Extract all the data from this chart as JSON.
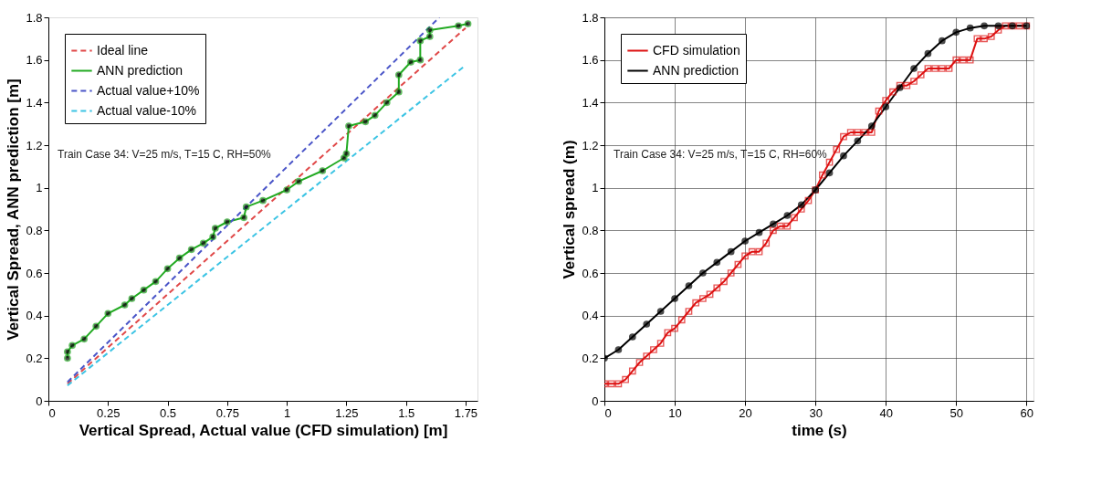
{
  "chart_data": [
    {
      "type": "line",
      "xlabel": "Vertical Spread, Actual value (CFD simulation) [m]",
      "ylabel": "Vertical Spread, ANN prediction [m]",
      "xlim": [
        0,
        1.8
      ],
      "xticks": [
        0,
        0.25,
        0.5,
        0.75,
        1,
        1.25,
        1.5,
        1.75
      ],
      "ylim": [
        0,
        1.8
      ],
      "yticks": [
        0,
        0.2,
        0.4,
        0.6,
        0.8,
        1,
        1.2,
        1.4,
        1.6,
        1.8
      ],
      "grid": false,
      "legend": "top left",
      "annotations": [
        "Train Case 34: V=25 m/s, T=15 C, RH=50%"
      ],
      "series": [
        {
          "name": "Ideal line",
          "color": "#e04848",
          "line_style": "dashed",
          "marker": "none",
          "x": [
            0.08,
            1.75
          ],
          "values": [
            0.08,
            1.75
          ]
        },
        {
          "name": "ANN prediction",
          "color": "#22aa22",
          "line_style": "solid",
          "marker": "circle",
          "x": [
            0.08,
            0.08,
            0.1,
            0.15,
            0.2,
            0.25,
            0.32,
            0.35,
            0.4,
            0.45,
            0.5,
            0.55,
            0.6,
            0.65,
            0.69,
            0.7,
            0.75,
            0.82,
            0.83,
            0.9,
            1.0,
            1.05,
            1.15,
            1.24,
            1.25,
            1.26,
            1.33,
            1.37,
            1.42,
            1.47,
            1.47,
            1.52,
            1.56,
            1.56,
            1.6,
            1.6,
            1.72,
            1.76
          ],
          "values": [
            0.2,
            0.23,
            0.26,
            0.29,
            0.35,
            0.41,
            0.45,
            0.48,
            0.52,
            0.56,
            0.62,
            0.67,
            0.71,
            0.74,
            0.77,
            0.81,
            0.84,
            0.86,
            0.91,
            0.94,
            0.99,
            1.03,
            1.08,
            1.14,
            1.16,
            1.29,
            1.31,
            1.34,
            1.4,
            1.45,
            1.53,
            1.59,
            1.6,
            1.69,
            1.71,
            1.74,
            1.76,
            1.77
          ]
        },
        {
          "name": "Actual value+10%",
          "color": "#4a55c8",
          "line_style": "dashed",
          "marker": "none",
          "x": [
            0.08,
            1.64
          ],
          "values": [
            0.088,
            1.8
          ]
        },
        {
          "name": "Actual value-10%",
          "color": "#3cc4e4",
          "line_style": "dashed",
          "marker": "none",
          "x": [
            0.08,
            1.75
          ],
          "values": [
            0.072,
            1.575
          ]
        }
      ]
    },
    {
      "type": "line",
      "xlabel": "time (s)",
      "ylabel": "Vertical spread (m)",
      "xlim": [
        0,
        61
      ],
      "xticks": [
        0,
        10,
        20,
        30,
        40,
        50,
        60
      ],
      "ylim": [
        0,
        1.8
      ],
      "yticks": [
        0,
        0.2,
        0.4,
        0.6,
        0.8,
        1,
        1.2,
        1.4,
        1.6,
        1.8
      ],
      "grid": true,
      "legend": "top left",
      "annotations": [
        "Train Case 34: V=25 m/s, T=15 C, RH=60%"
      ],
      "series": [
        {
          "name": "CFD simulation",
          "color": "#dd1111",
          "line_style": "solid",
          "marker": "square",
          "x": [
            0,
            1,
            2,
            3,
            4,
            5,
            6,
            7,
            8,
            9,
            10,
            11,
            12,
            13,
            14,
            15,
            16,
            17,
            18,
            19,
            20,
            21,
            22,
            23,
            24,
            25,
            26,
            27,
            28,
            29,
            30,
            31,
            32,
            33,
            34,
            35,
            36,
            37,
            38,
            39,
            40,
            41,
            42,
            43,
            44,
            45,
            46,
            47,
            48,
            49,
            50,
            51,
            52,
            53,
            54,
            55,
            56,
            57,
            58,
            59,
            60
          ],
          "values": [
            0.08,
            0.08,
            0.08,
            0.1,
            0.14,
            0.18,
            0.21,
            0.24,
            0.27,
            0.32,
            0.34,
            0.38,
            0.42,
            0.46,
            0.48,
            0.5,
            0.53,
            0.56,
            0.6,
            0.64,
            0.68,
            0.7,
            0.7,
            0.74,
            0.8,
            0.82,
            0.82,
            0.86,
            0.9,
            0.94,
            0.99,
            1.06,
            1.12,
            1.18,
            1.24,
            1.26,
            1.26,
            1.26,
            1.26,
            1.36,
            1.41,
            1.45,
            1.48,
            1.48,
            1.5,
            1.53,
            1.56,
            1.56,
            1.56,
            1.56,
            1.6,
            1.6,
            1.6,
            1.7,
            1.7,
            1.71,
            1.74,
            1.76,
            1.76,
            1.76,
            1.76
          ]
        },
        {
          "name": "ANN prediction",
          "color": "#000000",
          "line_style": "solid",
          "marker": "circle",
          "x": [
            0,
            2,
            4,
            6,
            8,
            10,
            12,
            14,
            16,
            18,
            20,
            22,
            24,
            26,
            28,
            30,
            32,
            34,
            36,
            38,
            40,
            42,
            44,
            46,
            48,
            50,
            52,
            54,
            56,
            58,
            60
          ],
          "values": [
            0.2,
            0.24,
            0.3,
            0.36,
            0.42,
            0.48,
            0.54,
            0.6,
            0.65,
            0.7,
            0.75,
            0.79,
            0.83,
            0.87,
            0.92,
            0.99,
            1.07,
            1.15,
            1.22,
            1.29,
            1.38,
            1.47,
            1.56,
            1.63,
            1.69,
            1.73,
            1.75,
            1.76,
            1.76,
            1.76,
            1.76
          ]
        }
      ]
    }
  ]
}
